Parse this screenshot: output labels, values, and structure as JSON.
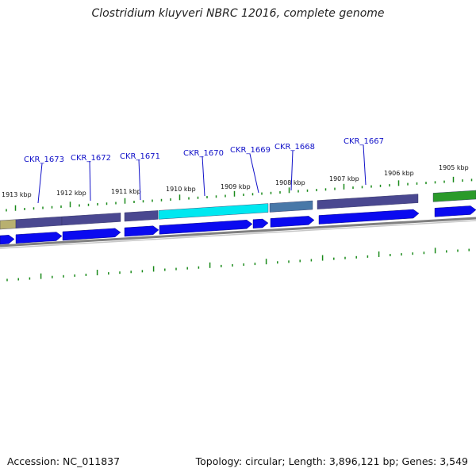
{
  "title": "Clostridium kluyveri NBRC 12016, complete genome",
  "footer": {
    "accession": "Accession: NC_011837",
    "summary": "Topology: circular; Length: 3,896,121 bp; Genes: 3,549"
  },
  "colors": {
    "gene_label": "#1010c8",
    "cds_arrow": "#0a0af0",
    "tick": "#1a8a1a",
    "backbone": "#808080",
    "protein_slate": "#4a4890",
    "protein_cyan": "#00e8f0",
    "protein_khaki": "#b8b070",
    "protein_green": "#2a9a2a",
    "protein_steel": "#4878a8"
  },
  "kbp_ticks": [
    {
      "label": "1913 kbp"
    },
    {
      "label": "1912 kbp"
    },
    {
      "label": "1911 kbp"
    },
    {
      "label": "1910 kbp"
    },
    {
      "label": "1909 kbp"
    },
    {
      "label": "1908 kbp"
    },
    {
      "label": "1907 kbp"
    },
    {
      "label": "1906 kbp"
    },
    {
      "label": "1905 kbp"
    }
  ],
  "gene_labels": [
    {
      "label": "CKR_1673"
    },
    {
      "label": "CKR_1672"
    },
    {
      "label": "CKR_1671"
    },
    {
      "label": "CKR_1670"
    },
    {
      "label": "CKR_1669"
    },
    {
      "label": "CKR_1668"
    },
    {
      "label": "CKR_1667"
    }
  ]
}
